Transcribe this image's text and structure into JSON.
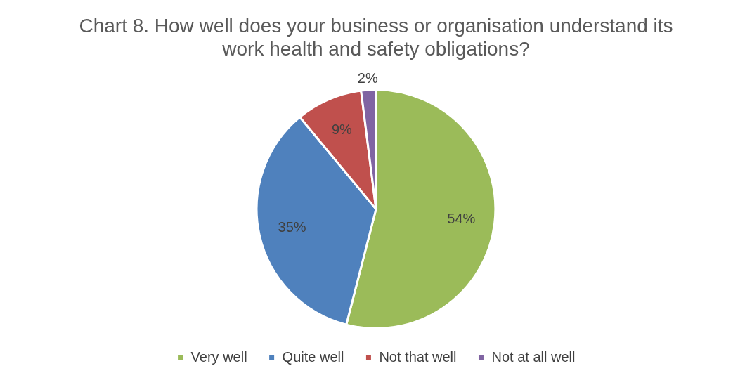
{
  "chart_data": {
    "type": "pie",
    "title": "Chart 8. How well does your business or organisation understand its work health and safety obligations?",
    "categories": [
      "Very well",
      "Quite well",
      "Not that well",
      "Not at all well"
    ],
    "values": [
      54,
      35,
      9,
      2
    ],
    "value_labels": [
      "54%",
      "35%",
      "9%",
      "2%"
    ],
    "colors": [
      "#9bbb59",
      "#4f81bd",
      "#c0504d",
      "#8064a2"
    ],
    "legend": "bottom"
  }
}
